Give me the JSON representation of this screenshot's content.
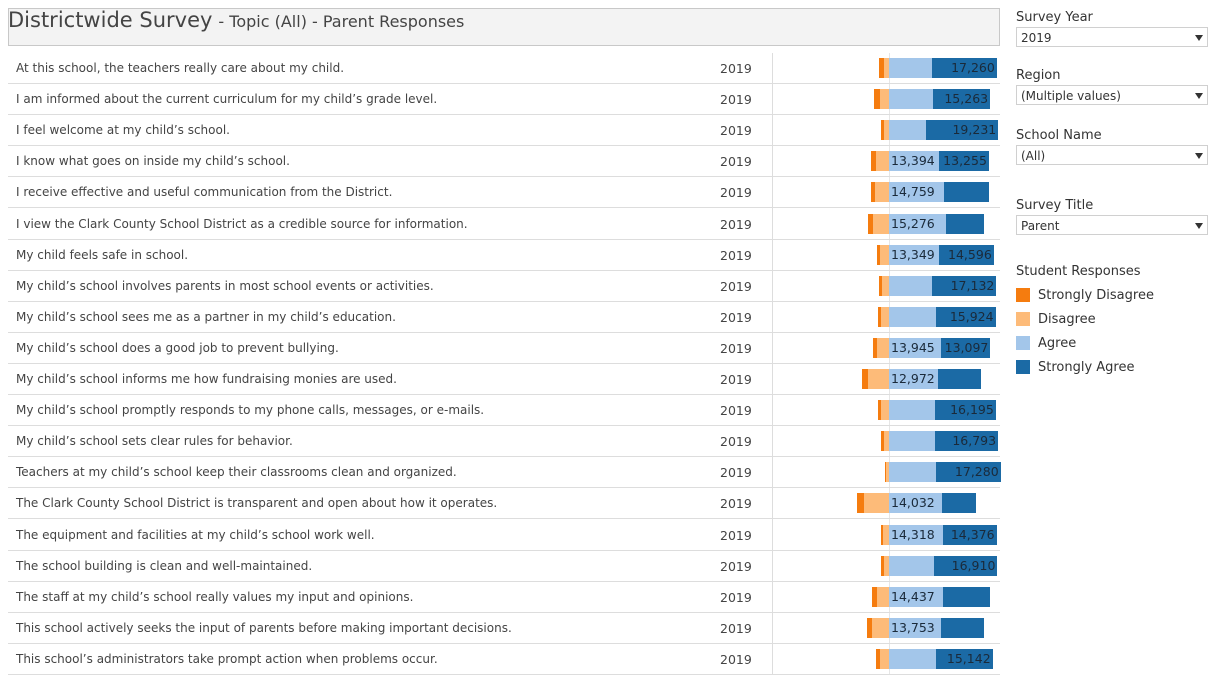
{
  "header": {
    "title": "Districtwide Survey",
    "subtitle": "- Topic (All) - Parent Responses"
  },
  "filters": [
    {
      "label": "Survey Year",
      "value": "2019"
    },
    {
      "label": "Region",
      "value": "(Multiple values)"
    },
    {
      "label": "School Name",
      "value": "(All)"
    },
    {
      "label": "Survey Title",
      "value": "Parent"
    }
  ],
  "legend": {
    "title": "Student Responses",
    "items": [
      {
        "name": "Strongly Disagree",
        "color": "#f57c0f"
      },
      {
        "name": "Disagree",
        "color": "#fdbb79"
      },
      {
        "name": "Agree",
        "color": "#a3c6ea"
      },
      {
        "name": "Strongly Agree",
        "color": "#1b6aa5"
      }
    ]
  },
  "rows": [
    {
      "question": "At this school, the teachers really care about my child.",
      "year": 2019,
      "values": [
        1300,
        1300,
        11500,
        17260
      ],
      "value_labels": [
        null,
        null,
        null,
        "17,260"
      ]
    },
    {
      "question": "I am informed about the current curriculum for my child’s grade level.",
      "year": 2019,
      "values": [
        1600,
        2400,
        11700,
        15263
      ],
      "value_labels": [
        null,
        null,
        null,
        "15,263"
      ]
    },
    {
      "question": "I feel welcome at my child’s school.",
      "year": 2019,
      "values": [
        800,
        1300,
        9900,
        19231
      ],
      "value_labels": [
        null,
        null,
        null,
        "19,231"
      ]
    },
    {
      "question": "I know what goes on inside my child’s school.",
      "year": 2019,
      "values": [
        1300,
        3500,
        13394,
        13255
      ],
      "value_labels": [
        null,
        null,
        "13,394",
        "13,255"
      ]
    },
    {
      "question": "I receive effective and useful communication from the District.",
      "year": 2019,
      "values": [
        1100,
        3700,
        14759,
        12000
      ],
      "value_labels": [
        null,
        null,
        "14,759",
        null
      ]
    },
    {
      "question": "I view the Clark County School District as a credible source for information.",
      "year": 2019,
      "values": [
        1300,
        4300,
        15276,
        10100
      ],
      "value_labels": [
        null,
        null,
        "15,276",
        null
      ]
    },
    {
      "question": "My child feels safe in school.",
      "year": 2019,
      "values": [
        800,
        2400,
        13349,
        14596
      ],
      "value_labels": [
        null,
        null,
        "13,349",
        "14,596"
      ]
    },
    {
      "question": "My child’s school involves parents in most school events or activities.",
      "year": 2019,
      "values": [
        800,
        1900,
        11500,
        17132
      ],
      "value_labels": [
        null,
        null,
        null,
        "17,132"
      ]
    },
    {
      "question": "My child’s school sees me as a partner in my child’s education.",
      "year": 2019,
      "values": [
        800,
        2100,
        12500,
        15924
      ],
      "value_labels": [
        null,
        null,
        null,
        "15,924"
      ]
    },
    {
      "question": "My child’s school does a good job to prevent bullying.",
      "year": 2019,
      "values": [
        1100,
        3200,
        13945,
        13097
      ],
      "value_labels": [
        null,
        null,
        "13,945",
        "13,097"
      ]
    },
    {
      "question": "My child’s school informs me how fundraising monies are used.",
      "year": 2019,
      "values": [
        1600,
        5600,
        12972,
        11500
      ],
      "value_labels": [
        null,
        null,
        "12,972",
        null
      ]
    },
    {
      "question": "My child’s school promptly responds to my phone calls, messages, or e-mails.",
      "year": 2019,
      "values": [
        800,
        2100,
        12300,
        16195
      ],
      "value_labels": [
        null,
        null,
        null,
        "16,195"
      ]
    },
    {
      "question": "My child’s school sets clear rules for behavior.",
      "year": 2019,
      "values": [
        800,
        1300,
        12300,
        16793
      ],
      "value_labels": [
        null,
        null,
        null,
        "16,793"
      ]
    },
    {
      "question": "Teachers at my child’s school keep their classrooms clean and organized.",
      "year": 2019,
      "values": [
        300,
        800,
        12500,
        17280
      ],
      "value_labels": [
        null,
        null,
        null,
        "17,280"
      ]
    },
    {
      "question": "The Clark County School District is transparent and open about how it operates.",
      "year": 2019,
      "values": [
        1900,
        6700,
        14032,
        9100
      ],
      "value_labels": [
        null,
        null,
        "14,032",
        null
      ]
    },
    {
      "question": "The equipment and facilities at my child’s school work well.",
      "year": 2019,
      "values": [
        500,
        1600,
        14318,
        14376
      ],
      "value_labels": [
        null,
        null,
        "14,318",
        "14,376"
      ]
    },
    {
      "question": "The school building is clean and well-maintained.",
      "year": 2019,
      "values": [
        800,
        1300,
        12000,
        16910
      ],
      "value_labels": [
        null,
        null,
        null,
        "16,910"
      ]
    },
    {
      "question": "The staff at my child’s school really values my input and opinions.",
      "year": 2019,
      "values": [
        1300,
        3200,
        14437,
        12500
      ],
      "value_labels": [
        null,
        null,
        "14,437",
        null
      ]
    },
    {
      "question": "This school actively seeks the input of parents before making important decisions.",
      "year": 2019,
      "values": [
        1300,
        4500,
        13753,
        11700
      ],
      "value_labels": [
        null,
        null,
        "13,753",
        null
      ]
    },
    {
      "question": "This school’s administrators take prompt action when problems occur.",
      "year": 2019,
      "values": [
        1100,
        2400,
        12500,
        15142
      ],
      "value_labels": [
        null,
        null,
        null,
        "15,142"
      ]
    }
  ]
}
